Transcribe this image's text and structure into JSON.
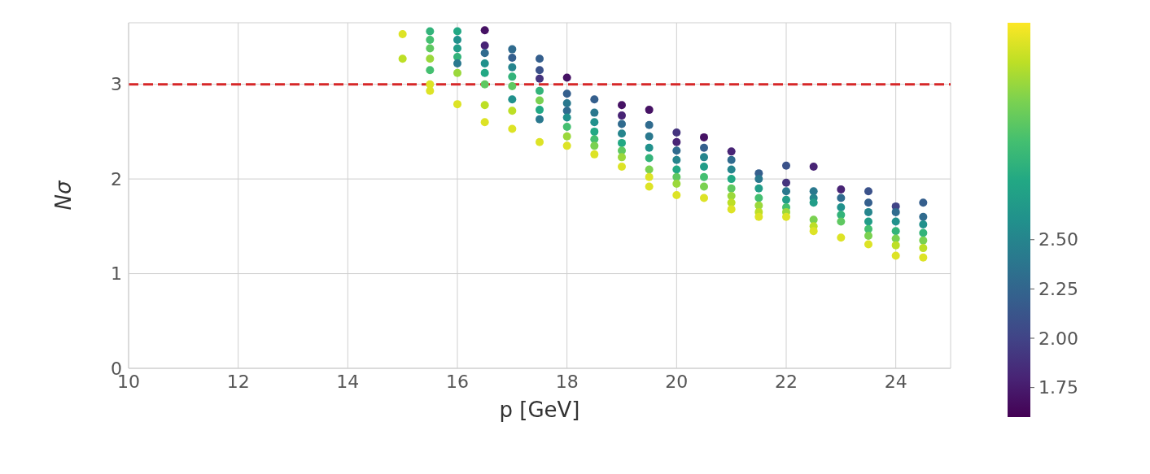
{
  "chart_data": {
    "type": "scatter",
    "xlabel": "p [GeV]",
    "ylabel": "Nσ",
    "xlim": [
      10,
      25
    ],
    "xticks": [
      10,
      12,
      14,
      16,
      18,
      20,
      22,
      24
    ],
    "ylim": [
      0,
      3.65
    ],
    "yticks": [
      0,
      1,
      2,
      3
    ],
    "grid": true,
    "marker": "circle",
    "clim": [
      1.6,
      3.6
    ],
    "cticks": [
      1.75,
      {
        "value": 2,
        "label": "2.00"
      },
      2.25,
      {
        "value": 2.5,
        "label": "2.50"
      }
    ],
    "ref_lines": [
      {
        "axis": "y",
        "value": 3,
        "color": "#d62728",
        "line_style": "dashed"
      }
    ],
    "series": [
      {
        "x": [
          15,
          15,
          15.5,
          15.5,
          15.5,
          15.5,
          15.5,
          15.5,
          15.5,
          16,
          16,
          16,
          16,
          16,
          16,
          16,
          16.5,
          16.5,
          16.5,
          16.5,
          16.5,
          16.5,
          16.5,
          16.5,
          17,
          17,
          17,
          17,
          17,
          17,
          17,
          17,
          17.5,
          17.5,
          17.5,
          17.5,
          17.5,
          17.5,
          17.5,
          17.5,
          18,
          18,
          18,
          18,
          18,
          18,
          18,
          18,
          18.5,
          18.5,
          18.5,
          18.5,
          18.5,
          18.5,
          18.5,
          19,
          19,
          19,
          19,
          19,
          19,
          19,
          19,
          19.5,
          19.5,
          19.5,
          19.5,
          19.5,
          19.5,
          19.5,
          19.5,
          20,
          20,
          20,
          20,
          20,
          20,
          20,
          20,
          20.5,
          20.5,
          20.5,
          20.5,
          20.5,
          20.5,
          20.5,
          21,
          21,
          21,
          21,
          21,
          21,
          21,
          21,
          21.5,
          21.5,
          21.5,
          21.5,
          21.5,
          21.5,
          21.5,
          22,
          22,
          22,
          22,
          22,
          22,
          22,
          22.5,
          22.5,
          22.5,
          22.5,
          22.5,
          22.5,
          22.5,
          23,
          23,
          23,
          23,
          23,
          23,
          23.5,
          23.5,
          23.5,
          23.5,
          23.5,
          23.5,
          23.5,
          24,
          24,
          24,
          24,
          24,
          24,
          24,
          24.5,
          24.5,
          24.5,
          24.5,
          24.5,
          24.5,
          24.5
        ],
        "values": [
          3.53,
          3.27,
          3.56,
          3.47,
          3.38,
          3.27,
          3.15,
          3.0,
          2.93,
          3.56,
          3.47,
          3.38,
          3.29,
          3.22,
          3.12,
          2.79,
          3.57,
          3.41,
          3.33,
          3.22,
          3.12,
          3.0,
          2.78,
          2.6,
          3.37,
          3.28,
          3.18,
          3.08,
          2.98,
          2.84,
          2.72,
          2.53,
          3.27,
          3.15,
          3.06,
          2.93,
          2.83,
          2.73,
          2.63,
          2.39,
          3.07,
          2.9,
          2.8,
          2.72,
          2.65,
          2.55,
          2.45,
          2.35,
          2.84,
          2.7,
          2.6,
          2.5,
          2.42,
          2.35,
          2.26,
          2.78,
          2.67,
          2.58,
          2.48,
          2.38,
          2.3,
          2.23,
          2.13,
          2.73,
          2.57,
          2.45,
          2.33,
          2.22,
          2.1,
          2.02,
          1.92,
          2.49,
          2.39,
          2.3,
          2.2,
          2.1,
          2.02,
          1.95,
          1.83,
          2.44,
          2.33,
          2.23,
          2.13,
          2.02,
          1.92,
          1.8,
          2.29,
          2.2,
          2.1,
          2.0,
          1.9,
          1.82,
          1.75,
          1.68,
          2.06,
          2.0,
          1.9,
          1.8,
          1.72,
          1.65,
          1.6,
          2.14,
          1.96,
          1.87,
          1.78,
          1.7,
          1.65,
          1.6,
          2.13,
          1.87,
          1.8,
          1.75,
          1.57,
          1.5,
          1.45,
          1.89,
          1.8,
          1.7,
          1.62,
          1.55,
          1.38,
          1.87,
          1.75,
          1.65,
          1.55,
          1.47,
          1.4,
          1.31,
          1.71,
          1.65,
          1.55,
          1.45,
          1.37,
          1.3,
          1.19,
          1.75,
          1.6,
          1.52,
          1.43,
          1.35,
          1.27,
          1.17
        ],
        "cvalues": [
          3.5,
          3.4,
          2.9,
          3.0,
          3.1,
          3.3,
          3.0,
          3.5,
          3.5,
          2.8,
          2.6,
          2.7,
          2.9,
          2.4,
          3.3,
          3.5,
          1.7,
          1.8,
          2.3,
          2.6,
          2.8,
          3.1,
          3.4,
          3.5,
          2.3,
          2.2,
          2.5,
          2.9,
          3.1,
          2.6,
          3.4,
          3.5,
          2.2,
          2.1,
          1.9,
          2.9,
          3.2,
          2.8,
          2.4,
          3.5,
          1.7,
          2.2,
          2.4,
          2.3,
          2.6,
          3.0,
          3.3,
          3.5,
          2.2,
          2.4,
          2.6,
          2.8,
          3.0,
          3.2,
          3.5,
          1.7,
          1.8,
          2.3,
          2.5,
          2.8,
          3.1,
          3.3,
          3.5,
          1.7,
          2.3,
          2.4,
          2.6,
          2.9,
          3.2,
          3.5,
          3.5,
          1.9,
          1.8,
          2.3,
          2.5,
          2.8,
          3.1,
          3.3,
          3.5,
          1.7,
          2.2,
          2.5,
          2.7,
          3.0,
          3.2,
          3.5,
          1.8,
          2.3,
          2.5,
          2.8,
          3.1,
          3.3,
          3.4,
          3.5,
          2.2,
          2.4,
          2.7,
          3.0,
          3.3,
          3.4,
          3.5,
          2.1,
          1.9,
          2.4,
          2.7,
          3.0,
          3.3,
          3.5,
          1.8,
          2.4,
          2.5,
          2.7,
          3.2,
          3.4,
          3.5,
          1.8,
          2.3,
          2.6,
          2.9,
          3.1,
          3.5,
          2.1,
          2.2,
          2.5,
          2.7,
          3.0,
          3.2,
          3.5,
          2.0,
          2.3,
          2.6,
          2.9,
          3.2,
          3.4,
          3.5,
          2.2,
          2.3,
          2.6,
          2.9,
          3.2,
          3.4,
          3.5
        ]
      }
    ]
  }
}
